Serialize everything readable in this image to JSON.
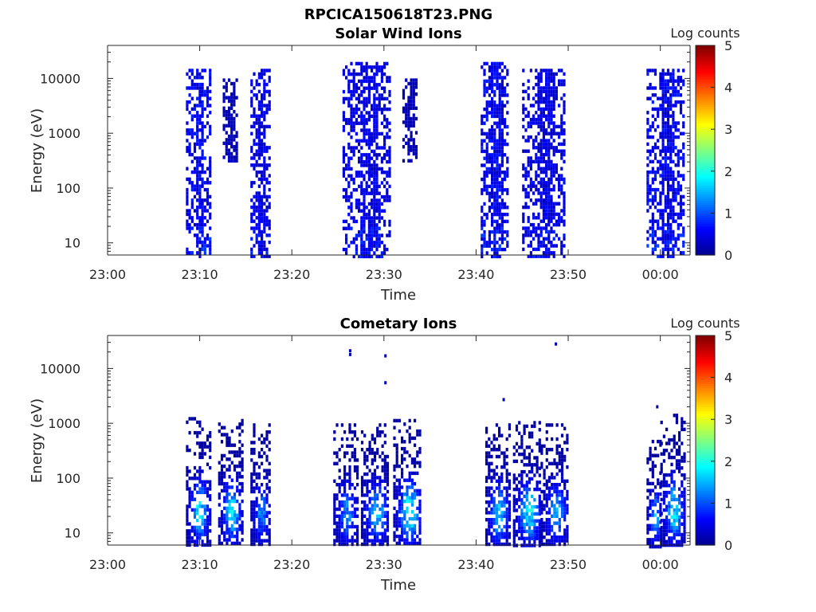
{
  "figure_title": "RPCICA150618T23.PNG",
  "colors": {
    "colormap": [
      "#00008f",
      "#0000ff",
      "#0080ff",
      "#00ffff",
      "#80ff80",
      "#ffff00",
      "#ff8000",
      "#ff0000",
      "#800000"
    ]
  },
  "chart_data": [
    {
      "type": "heatmap",
      "title": "Solar Wind Ions",
      "xlabel": "Time",
      "ylabel": "Energy (eV)",
      "y_scale": "log",
      "ylim": [
        6,
        40000
      ],
      "x_ticks": [
        "23:00",
        "23:10",
        "23:20",
        "23:30",
        "23:40",
        "23:50",
        "00:00"
      ],
      "y_ticks": [
        "10",
        "100",
        "1000",
        "10000"
      ],
      "colorbar": {
        "label": "Log counts",
        "ticks": [
          "0",
          "1",
          "2",
          "3",
          "4",
          "5"
        ],
        "range": [
          0,
          5
        ]
      },
      "bursts": [
        {
          "start": "23:08:30",
          "end": "23:11:00",
          "e_min": 6,
          "e_max": 15000,
          "peak_log_counts": 0.8
        },
        {
          "start": "23:12:30",
          "end": "23:14:00",
          "e_min": 300,
          "e_max": 10000,
          "peak_log_counts": 0.3
        },
        {
          "start": "23:15:30",
          "end": "23:17:30",
          "e_min": 6,
          "e_max": 15000,
          "peak_log_counts": 0.7
        },
        {
          "start": "23:25:30",
          "end": "23:30:30",
          "e_min": 6,
          "e_max": 20000,
          "peak_log_counts": 0.7
        },
        {
          "start": "23:32:00",
          "end": "23:33:30",
          "e_min": 300,
          "e_max": 10000,
          "peak_log_counts": 0.3
        },
        {
          "start": "23:40:30",
          "end": "23:43:30",
          "e_min": 6,
          "e_max": 20000,
          "peak_log_counts": 0.8
        },
        {
          "start": "23:45:00",
          "end": "23:49:30",
          "e_min": 6,
          "e_max": 15000,
          "peak_log_counts": 0.7
        },
        {
          "start": "23:58:30",
          "end": "00:02:30",
          "e_min": 6,
          "e_max": 15000,
          "peak_log_counts": 0.8
        }
      ]
    },
    {
      "type": "heatmap",
      "title": "Cometary Ions",
      "xlabel": "Time",
      "ylabel": "Energy (eV)",
      "y_scale": "log",
      "ylim": [
        6,
        40000
      ],
      "x_ticks": [
        "23:00",
        "23:10",
        "23:20",
        "23:30",
        "23:40",
        "23:50",
        "00:00"
      ],
      "y_ticks": [
        "10",
        "100",
        "1000",
        "10000"
      ],
      "colorbar": {
        "label": "Log counts",
        "ticks": [
          "0",
          "1",
          "2",
          "3",
          "4",
          "5"
        ],
        "range": [
          0,
          5
        ]
      },
      "bursts": [
        {
          "start": "23:08:30",
          "end": "23:11:00",
          "e_min": 6,
          "e_max": 1300,
          "peak_log_counts": 2.0
        },
        {
          "start": "23:12:00",
          "end": "23:14:30",
          "e_min": 6,
          "e_max": 1200,
          "peak_log_counts": 2.0
        },
        {
          "start": "23:15:30",
          "end": "23:17:30",
          "e_min": 6,
          "e_max": 1000,
          "peak_log_counts": 1.5
        },
        {
          "start": "23:24:30",
          "end": "23:27:00",
          "e_min": 6,
          "e_max": 1000,
          "peak_log_counts": 1.5
        },
        {
          "start": "23:27:30",
          "end": "23:30:30",
          "e_min": 6,
          "e_max": 1000,
          "peak_log_counts": 1.8
        },
        {
          "start": "23:31:00",
          "end": "23:34:00",
          "e_min": 6,
          "e_max": 1200,
          "peak_log_counts": 2.3
        },
        {
          "start": "23:41:00",
          "end": "23:43:30",
          "e_min": 6,
          "e_max": 1000,
          "peak_log_counts": 2.0
        },
        {
          "start": "23:44:00",
          "end": "23:47:00",
          "e_min": 6,
          "e_max": 1100,
          "peak_log_counts": 2.2
        },
        {
          "start": "23:47:00",
          "end": "23:50:00",
          "e_min": 6,
          "e_max": 1000,
          "peak_log_counts": 1.6
        },
        {
          "start": "23:58:30",
          "end": "00:00:00",
          "e_min": 6,
          "e_max": 500,
          "peak_log_counts": 1.8
        },
        {
          "start": "00:00:00",
          "end": "00:02:30",
          "e_min": 6,
          "e_max": 1500,
          "peak_log_counts": 2.0
        }
      ],
      "sparse_points": [
        {
          "time": "23:26:20",
          "energy": 21000
        },
        {
          "time": "23:26:20",
          "energy": 18000
        },
        {
          "time": "23:30:10",
          "energy": 17000
        },
        {
          "time": "23:30:10",
          "energy": 5500
        },
        {
          "time": "23:43:00",
          "energy": 2700
        },
        {
          "time": "23:48:40",
          "energy": 28000
        },
        {
          "time": "23:59:40",
          "energy": 2000
        }
      ]
    }
  ]
}
